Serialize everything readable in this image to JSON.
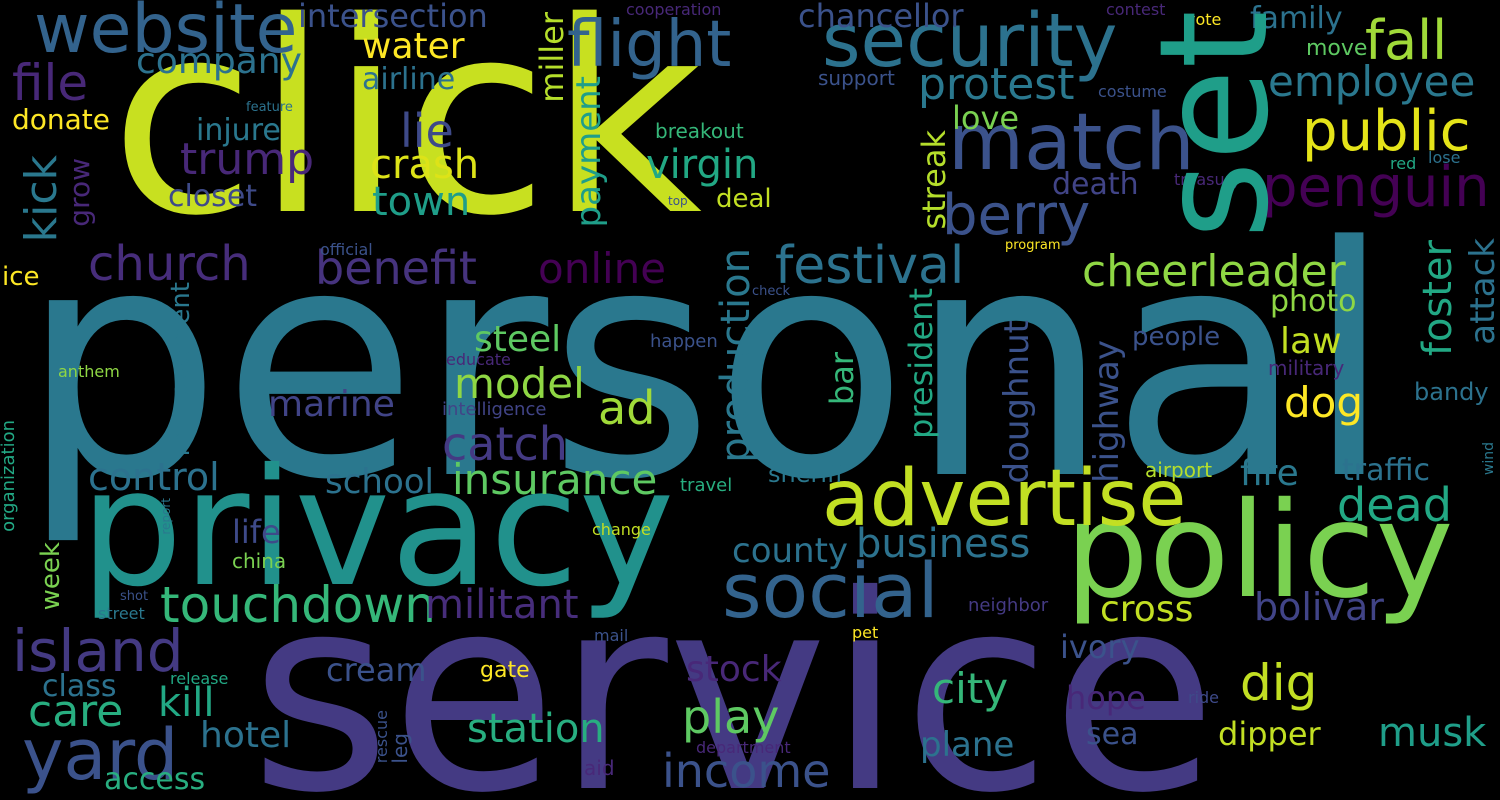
{
  "words": [
    {
      "text": "personal",
      "color": "#2a788e"
    },
    {
      "text": "service",
      "color": "#443a83"
    },
    {
      "text": "click",
      "color": "#c8e020"
    },
    {
      "text": "privacy",
      "color": "#21918c"
    },
    {
      "text": "policy",
      "color": "#7ad151"
    },
    {
      "text": "set",
      "color": "#1f9e89"
    },
    {
      "text": "security",
      "color": "#2c728e"
    },
    {
      "text": "match",
      "color": "#3b528b"
    },
    {
      "text": "advertise",
      "color": "#c2df23"
    },
    {
      "text": "social",
      "color": "#33638d"
    },
    {
      "text": "website",
      "color": "#33638d"
    },
    {
      "text": "flight",
      "color": "#33638d"
    },
    {
      "text": "touchdown",
      "color": "#35b779"
    },
    {
      "text": "yard",
      "color": "#3b528b"
    },
    {
      "text": "island",
      "color": "#443a83"
    },
    {
      "text": "income",
      "color": "#3b528b"
    },
    {
      "text": "penguin",
      "color": "#440154"
    },
    {
      "text": "public",
      "color": "#e5e419"
    },
    {
      "text": "berry",
      "color": "#3b528b"
    },
    {
      "text": "festival",
      "color": "#2c728e"
    },
    {
      "text": "benefit",
      "color": "#46337e"
    },
    {
      "text": "church",
      "color": "#472d7b"
    },
    {
      "text": "online",
      "color": "#440154"
    },
    {
      "text": "cheerleader",
      "color": "#8fd744"
    },
    {
      "text": "trump",
      "color": "#482878"
    },
    {
      "text": "insurance",
      "color": "#5ec962"
    },
    {
      "text": "catch",
      "color": "#443a83"
    },
    {
      "text": "militant",
      "color": "#472d7b"
    },
    {
      "text": "business",
      "color": "#2c728e"
    },
    {
      "text": "employee",
      "color": "#2a788e"
    },
    {
      "text": "fall",
      "color": "#a0da39"
    },
    {
      "text": "protest",
      "color": "#2a788e"
    },
    {
      "text": "dig",
      "color": "#c2df23"
    },
    {
      "text": "dead",
      "color": "#22a884"
    },
    {
      "text": "musk",
      "color": "#1f9e89"
    },
    {
      "text": "play",
      "color": "#5ec962"
    },
    {
      "text": "station",
      "color": "#28ae80"
    },
    {
      "text": "care",
      "color": "#28ae80"
    },
    {
      "text": "kill",
      "color": "#22a884"
    },
    {
      "text": "model",
      "color": "#8fd744"
    },
    {
      "text": "crash",
      "color": "#dde318"
    },
    {
      "text": "file",
      "color": "#482878"
    },
    {
      "text": "virgin",
      "color": "#22a884"
    },
    {
      "text": "kick",
      "color": "#2a788e"
    },
    {
      "text": "control",
      "color": "#2c728e"
    },
    {
      "text": "county",
      "color": "#2c728e"
    },
    {
      "text": "city",
      "color": "#35b779"
    },
    {
      "text": "stock",
      "color": "#482878"
    },
    {
      "text": "bolivar",
      "color": "#414487"
    },
    {
      "text": "cross",
      "color": "#c2df23"
    },
    {
      "text": "dog",
      "color": "#fde725"
    },
    {
      "text": "ad",
      "color": "#a0da39"
    },
    {
      "text": "lie",
      "color": "#3e4a89"
    },
    {
      "text": "company",
      "color": "#2c728e"
    },
    {
      "text": "water",
      "color": "#fde725"
    },
    {
      "text": "intersection",
      "color": "#3b528b"
    },
    {
      "text": "chancellor",
      "color": "#3b528b"
    },
    {
      "text": "town",
      "color": "#1f9e89"
    },
    {
      "text": "marine",
      "color": "#414487"
    },
    {
      "text": "hotel",
      "color": "#2c728e"
    },
    {
      "text": "plane",
      "color": "#2c728e"
    },
    {
      "text": "dipper",
      "color": "#c2df23"
    },
    {
      "text": "steel",
      "color": "#5ec962"
    },
    {
      "text": "school",
      "color": "#2c728e"
    },
    {
      "text": "cream",
      "color": "#3b528b"
    },
    {
      "text": "law",
      "color": "#c2df23"
    },
    {
      "text": "photo",
      "color": "#8fd744"
    },
    {
      "text": "fire",
      "color": "#2a788e"
    },
    {
      "text": "traffic",
      "color": "#2c728e"
    },
    {
      "text": "hope",
      "color": "#482878"
    },
    {
      "text": "ivory",
      "color": "#3b528b"
    },
    {
      "text": "class",
      "color": "#2c728e"
    },
    {
      "text": "access",
      "color": "#28ae80"
    },
    {
      "text": "life",
      "color": "#3e4a89"
    },
    {
      "text": "closet",
      "color": "#3e4a89"
    },
    {
      "text": "injure",
      "color": "#2a788e"
    },
    {
      "text": "love",
      "color": "#7ad151"
    },
    {
      "text": "death",
      "color": "#414487"
    },
    {
      "text": "airline",
      "color": "#2c728e"
    },
    {
      "text": "donate",
      "color": "#fde725"
    },
    {
      "text": "sea",
      "color": "#3b528b"
    },
    {
      "text": "people",
      "color": "#3b528b"
    },
    {
      "text": "deal",
      "color": "#c2df23"
    },
    {
      "text": "family",
      "color": "#2c728e"
    },
    {
      "text": "move",
      "color": "#5ec962"
    },
    {
      "text": "bandy",
      "color": "#2c728e"
    },
    {
      "text": "sheriff",
      "color": "#2a788e"
    },
    {
      "text": "airport",
      "color": "#b5de2b"
    },
    {
      "text": "ice",
      "color": "#fde725"
    },
    {
      "text": "breakout",
      "color": "#35b779"
    },
    {
      "text": "support",
      "color": "#3b528b"
    },
    {
      "text": "gate",
      "color": "#fde725"
    },
    {
      "text": "military",
      "color": "#482878"
    },
    {
      "text": "intelligence",
      "color": "#414487"
    },
    {
      "text": "happen",
      "color": "#3b528b"
    },
    {
      "text": "neighbor",
      "color": "#443a83"
    },
    {
      "text": "china",
      "color": "#7ad151"
    },
    {
      "text": "travel",
      "color": "#28ae80"
    },
    {
      "text": "anthem",
      "color": "#8fd744"
    },
    {
      "text": "change",
      "color": "#c2df23"
    },
    {
      "text": "release",
      "color": "#22a884"
    },
    {
      "text": "educate",
      "color": "#482878"
    },
    {
      "text": "costume",
      "color": "#3b528b"
    },
    {
      "text": "cooperation",
      "color": "#482878"
    },
    {
      "text": "contest",
      "color": "#482878"
    },
    {
      "text": "vote",
      "color": "#fde725"
    },
    {
      "text": "lose",
      "color": "#2c728e"
    },
    {
      "text": "official",
      "color": "#3b528b"
    },
    {
      "text": "treasury",
      "color": "#482878"
    },
    {
      "text": "pet",
      "color": "#fde725"
    },
    {
      "text": "mail",
      "color": "#3b528b"
    },
    {
      "text": "aid",
      "color": "#482878"
    },
    {
      "text": "ride",
      "color": "#3e4a89"
    },
    {
      "text": "department",
      "color": "#482878"
    },
    {
      "text": "street",
      "color": "#2a788e"
    },
    {
      "text": "shot",
      "color": "#3b528b"
    },
    {
      "text": "program",
      "color": "#fde725"
    },
    {
      "text": "check",
      "color": "#3b528b"
    },
    {
      "text": "red",
      "color": "#22a884"
    },
    {
      "text": "feature",
      "color": "#2c728e"
    },
    {
      "text": "top",
      "color": "#3b528b"
    },
    {
      "text": "week",
      "color": "#7ad151"
    },
    {
      "text": "grow",
      "color": "#482878"
    },
    {
      "text": "miller",
      "color": "#b5de2b"
    },
    {
      "text": "payment",
      "color": "#1f9e89"
    },
    {
      "text": "production",
      "color": "#2a788e"
    },
    {
      "text": "improvement",
      "color": "#2a788e"
    },
    {
      "text": "streak",
      "color": "#b5de2b"
    },
    {
      "text": "president",
      "color": "#22a884"
    },
    {
      "text": "bar",
      "color": "#35b779"
    },
    {
      "text": "doughnut",
      "color": "#3b528b"
    },
    {
      "text": "highway",
      "color": "#3b528b"
    },
    {
      "text": "foster",
      "color": "#22a884"
    },
    {
      "text": "attack",
      "color": "#2c728e"
    },
    {
      "text": "organization",
      "color": "#22a884"
    },
    {
      "text": "report",
      "color": "#2a788e"
    },
    {
      "text": "rescue",
      "color": "#3b528b"
    },
    {
      "text": "leg",
      "color": "#3b528b"
    },
    {
      "text": "wind",
      "color": "#2a788e"
    }
  ]
}
